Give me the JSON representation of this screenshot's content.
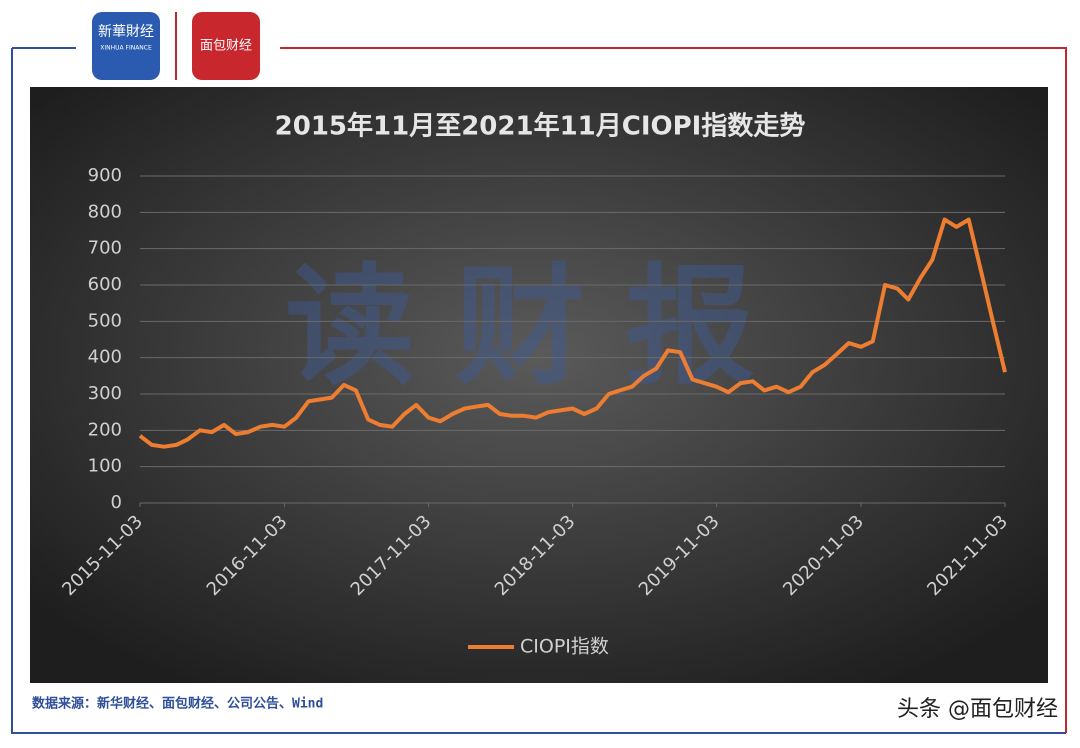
{
  "header": {
    "logo_left": "新華財经",
    "logo_left_sub": "XINHUA FINANCE",
    "logo_right": "面包财经"
  },
  "watermark": "读财报",
  "footer": {
    "source": "数据来源：新华财经、面包财经、公司公告、Wind",
    "credit": "头条 @面包财经"
  },
  "chart_data": {
    "type": "line",
    "title": "2015年11月至2021年11月CIOPI指数走势",
    "x": [
      "2015-11-03",
      "2015-12-03",
      "2016-01-03",
      "2016-02-03",
      "2016-03-03",
      "2016-04-03",
      "2016-05-03",
      "2016-06-03",
      "2016-07-03",
      "2016-08-03",
      "2016-09-03",
      "2016-10-03",
      "2016-11-03",
      "2016-12-03",
      "2017-01-03",
      "2017-02-03",
      "2017-03-03",
      "2017-04-03",
      "2017-05-03",
      "2017-06-03",
      "2017-07-03",
      "2017-08-03",
      "2017-09-03",
      "2017-10-03",
      "2017-11-03",
      "2017-12-03",
      "2018-01-03",
      "2018-02-03",
      "2018-03-03",
      "2018-04-03",
      "2018-05-03",
      "2018-06-03",
      "2018-07-03",
      "2018-08-03",
      "2018-09-03",
      "2018-10-03",
      "2018-11-03",
      "2018-12-03",
      "2019-01-03",
      "2019-02-03",
      "2019-03-03",
      "2019-04-03",
      "2019-05-03",
      "2019-06-03",
      "2019-07-03",
      "2019-08-03",
      "2019-09-03",
      "2019-10-03",
      "2019-11-03",
      "2019-12-03",
      "2020-01-03",
      "2020-02-03",
      "2020-03-03",
      "2020-04-03",
      "2020-05-03",
      "2020-06-03",
      "2020-07-03",
      "2020-08-03",
      "2020-09-03",
      "2020-10-03",
      "2020-11-03",
      "2020-12-03",
      "2021-01-03",
      "2021-02-03",
      "2021-03-03",
      "2021-04-03",
      "2021-05-03",
      "2021-06-03",
      "2021-07-03",
      "2021-08-03",
      "2021-09-03",
      "2021-10-03",
      "2021-11-03"
    ],
    "series": [
      {
        "name": "CIOPI指数",
        "color": "#ed7d31",
        "values": [
          185,
          160,
          155,
          160,
          175,
          200,
          195,
          215,
          190,
          195,
          210,
          215,
          210,
          235,
          280,
          285,
          290,
          325,
          310,
          230,
          215,
          210,
          245,
          270,
          235,
          225,
          245,
          260,
          265,
          270,
          245,
          240,
          240,
          235,
          250,
          255,
          260,
          245,
          260,
          300,
          310,
          320,
          350,
          370,
          420,
          415,
          340,
          330,
          320,
          305,
          330,
          335,
          310,
          320,
          305,
          320,
          360,
          380,
          410,
          440,
          430,
          445,
          600,
          590,
          560,
          620,
          670,
          780,
          760,
          780,
          640,
          500,
          360
        ]
      }
    ],
    "xlim": [
      "2015-11-03",
      "2021-11-03"
    ],
    "xticks": [
      "2015-11-03",
      "2016-11-03",
      "2017-11-03",
      "2018-11-03",
      "2019-11-03",
      "2020-11-03",
      "2021-11-03"
    ],
    "ylim": [
      0,
      900
    ],
    "yticks": [
      0,
      100,
      200,
      300,
      400,
      500,
      600,
      700,
      800,
      900
    ],
    "grid": true,
    "legend": "bottom"
  }
}
